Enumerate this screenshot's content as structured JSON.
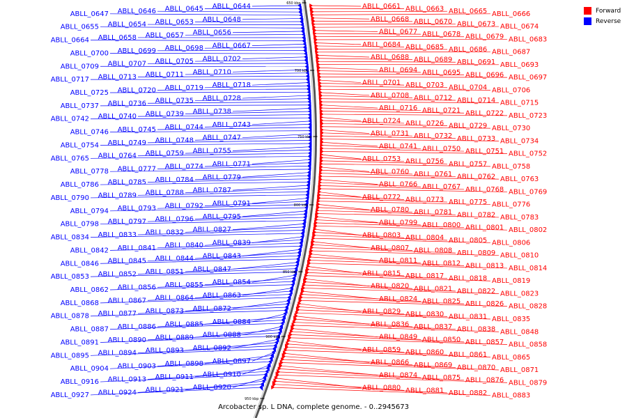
{
  "caption": "Arcobacter sp. L DNA, complete genome. - 0..2945673",
  "legend": [
    {
      "label": "Forward",
      "color": "#ff0000"
    },
    {
      "label": "Reverse",
      "color": "#0000ff"
    }
  ],
  "scale_ticks": [
    "650 kbp",
    "700 kbp",
    "750 kbp",
    "800 kbp",
    "850 kbp",
    "900 kbp",
    "950 kbp"
  ],
  "reverse_labels": [
    "ABLL_0644",
    "ABLL_0645",
    "ABLL_0646",
    "ABLL_0647",
    "ABLL_0648",
    "ABLL_0653",
    "ABLL_0654",
    "ABLL_0655",
    "ABLL_0656",
    "ABLL_0657",
    "ABLL_0658",
    "ABLL_0664",
    "ABLL_0667",
    "ABLL_0698",
    "ABLL_0699",
    "ABLL_0700",
    "ABLL_0702",
    "ABLL_0705",
    "ABLL_0707",
    "ABLL_0709",
    "ABLL_0710",
    "ABLL_0711",
    "ABLL_0713",
    "ABLL_0717",
    "ABLL_0718",
    "ABLL_0719",
    "ABLL_0720",
    "ABLL_0725",
    "ABLL_0728",
    "ABLL_0735",
    "ABLL_0736",
    "ABLL_0737",
    "ABLL_0738",
    "ABLL_0739",
    "ABLL_0740",
    "ABLL_0742",
    "ABLL_0743",
    "ABLL_0744",
    "ABLL_0745",
    "ABLL_0746",
    "ABLL_0747",
    "ABLL_0748",
    "ABLL_0749",
    "ABLL_0754",
    "ABLL_0755",
    "ABLL_0759",
    "ABLL_0764",
    "ABLL_0765",
    "ABLL_0771",
    "ABLL_0774",
    "ABLL_0777",
    "ABLL_0778",
    "ABLL_0779",
    "ABLL_0784",
    "ABLL_0785",
    "ABLL_0786",
    "ABLL_0787",
    "ABLL_0788",
    "ABLL_0789",
    "ABLL_0790",
    "ABLL_0791",
    "ABLL_0792",
    "ABLL_0793",
    "ABLL_0794",
    "ABLL_0795",
    "ABLL_0796",
    "ABLL_0797",
    "ABLL_0798",
    "ABLL_0827",
    "ABLL_0832",
    "ABLL_0833",
    "ABLL_0834",
    "ABLL_0839",
    "ABLL_0840",
    "ABLL_0841",
    "ABLL_0842",
    "ABLL_0843",
    "ABLL_0844",
    "ABLL_0845",
    "ABLL_0846",
    "ABLL_0847",
    "ABLL_0851",
    "ABLL_0852",
    "ABLL_0853",
    "ABLL_0854",
    "ABLL_0855",
    "ABLL_0856",
    "ABLL_0862",
    "ABLL_0863",
    "ABLL_0864",
    "ABLL_0867",
    "ABLL_0868",
    "ABLL_0872",
    "ABLL_0873",
    "ABLL_0877",
    "ABLL_0878",
    "ABLL_0884",
    "ABLL_0885",
    "ABLL_0886",
    "ABLL_0887",
    "ABLL_0888",
    "ABLL_0889",
    "ABLL_0890",
    "ABLL_0891",
    "ABLL_0892",
    "ABLL_0893",
    "ABLL_0894",
    "ABLL_0895",
    "ABLL_0897",
    "ABLL_0898",
    "ABLL_0903",
    "ABLL_0904",
    "ABLL_0910",
    "ABLL_0911",
    "ABLL_0913",
    "ABLL_0916",
    "ABLL_0920",
    "ABLL_0921",
    "ABLL_0924",
    "ABLL_0927"
  ],
  "forward_labels": [
    "ABLL_0661",
    "ABLL_0663",
    "ABLL_0665",
    "ABLL_0666",
    "ABLL_0668",
    "ABLL_0670",
    "ABLL_0673",
    "ABLL_0674",
    "ABLL_0677",
    "ABLL_0678",
    "ABLL_0679",
    "ABLL_0683",
    "ABLL_0684",
    "ABLL_0685",
    "ABLL_0686",
    "ABLL_0687",
    "ABLL_0688",
    "ABLL_0689",
    "ABLL_0691",
    "ABLL_0693",
    "ABLL_0694",
    "ABLL_0695",
    "ABLL_0696",
    "ABLL_0697",
    "ABLL_0701",
    "ABLL_0703",
    "ABLL_0704",
    "ABLL_0706",
    "ABLL_0708",
    "ABLL_0712",
    "ABLL_0714",
    "ABLL_0715",
    "ABLL_0716",
    "ABLL_0721",
    "ABLL_0722",
    "ABLL_0723",
    "ABLL_0724",
    "ABLL_0726",
    "ABLL_0729",
    "ABLL_0730",
    "ABLL_0731",
    "ABLL_0732",
    "ABLL_0733",
    "ABLL_0734",
    "ABLL_0741",
    "ABLL_0750",
    "ABLL_0751",
    "ABLL_0752",
    "ABLL_0753",
    "ABLL_0756",
    "ABLL_0757",
    "ABLL_0758",
    "ABLL_0760",
    "ABLL_0761",
    "ABLL_0762",
    "ABLL_0763",
    "ABLL_0766",
    "ABLL_0767",
    "ABLL_0768",
    "ABLL_0769",
    "ABLL_0772",
    "ABLL_0773",
    "ABLL_0775",
    "ABLL_0776",
    "ABLL_0780",
    "ABLL_0781",
    "ABLL_0782",
    "ABLL_0783",
    "ABLL_0799",
    "ABLL_0800",
    "ABLL_0801",
    "ABLL_0802",
    "ABLL_0803",
    "ABLL_0804",
    "ABLL_0805",
    "ABLL_0806",
    "ABLL_0807",
    "ABLL_0808",
    "ABLL_0809",
    "ABLL_0810",
    "ABLL_0811",
    "ABLL_0812",
    "ABLL_0813",
    "ABLL_0814",
    "ABLL_0815",
    "ABLL_0817",
    "ABLL_0818",
    "ABLL_0819",
    "ABLL_0820",
    "ABLL_0821",
    "ABLL_0822",
    "ABLL_0823",
    "ABLL_0824",
    "ABLL_0825",
    "ABLL_0826",
    "ABLL_0828",
    "ABLL_0829",
    "ABLL_0830",
    "ABLL_0831",
    "ABLL_0835",
    "ABLL_0836",
    "ABLL_0837",
    "ABLL_0838",
    "ABLL_0848",
    "ABLL_0849",
    "ABLL_0850",
    "ABLL_0857",
    "ABLL_0858",
    "ABLL_0859",
    "ABLL_0860",
    "ABLL_0861",
    "ABLL_0865",
    "ABLL_0866",
    "ABLL_0869",
    "ABLL_0870",
    "ABLL_0871",
    "ABLL_0874",
    "ABLL_0875",
    "ABLL_0876",
    "ABLL_0879",
    "ABLL_0880",
    "ABLL_0881",
    "ABLL_0882",
    "ABLL_0883"
  ]
}
